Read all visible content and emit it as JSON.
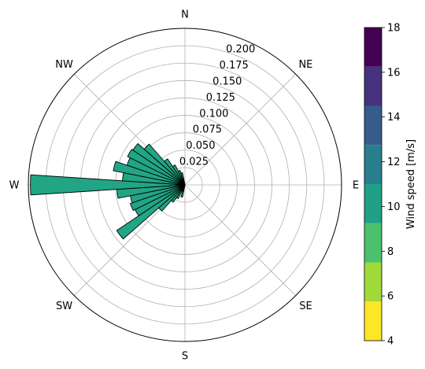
{
  "chart_data": {
    "type": "polar-bar",
    "title": "",
    "direction_labels": [
      "N",
      "NE",
      "E",
      "SE",
      "S",
      "SW",
      "W",
      "NW"
    ],
    "radial_max": 0.225,
    "radial_ticks": [
      0.025,
      0.05,
      0.075,
      0.1,
      0.125,
      0.15,
      0.175,
      0.2
    ],
    "radial_tick_labels": [
      "0.025",
      "0.050",
      "0.075",
      "0.100",
      "0.125",
      "0.150",
      "0.175",
      "0.200"
    ],
    "bin_width_deg": 7.5,
    "bars_direction_deg": [
      195,
      202.5,
      210,
      217.5,
      225,
      232.5,
      240,
      247.5,
      255,
      262.5,
      270,
      277.5,
      285,
      292.5,
      300,
      307.5,
      315,
      322.5,
      330,
      337.5,
      345
    ],
    "bars_frequency": [
      0.018,
      0.01,
      0.022,
      0.03,
      0.05,
      0.118,
      0.08,
      0.083,
      0.08,
      0.098,
      0.222,
      0.09,
      0.105,
      0.088,
      0.092,
      0.09,
      0.078,
      0.045,
      0.032,
      0.022,
      0.018
    ],
    "bars_color": "#21a585",
    "grid": true,
    "colorbar": {
      "label": "Wind speed [m/s]",
      "ticks": [
        "4",
        "6",
        "8",
        "10",
        "12",
        "14",
        "16",
        "18"
      ],
      "bins": [
        {
          "from": 4,
          "to": 5.75,
          "color": "#fde725"
        },
        {
          "from": 5.75,
          "to": 7.5,
          "color": "#a0da39"
        },
        {
          "from": 7.5,
          "to": 9.25,
          "color": "#4ac16d"
        },
        {
          "from": 9.25,
          "to": 11,
          "color": "#1fa187"
        },
        {
          "from": 11,
          "to": 12.75,
          "color": "#277f8e"
        },
        {
          "from": 12.75,
          "to": 14.5,
          "color": "#365c8d"
        },
        {
          "from": 14.5,
          "to": 16.25,
          "color": "#46327e"
        },
        {
          "from": 16.25,
          "to": 18,
          "color": "#440154"
        }
      ]
    }
  }
}
